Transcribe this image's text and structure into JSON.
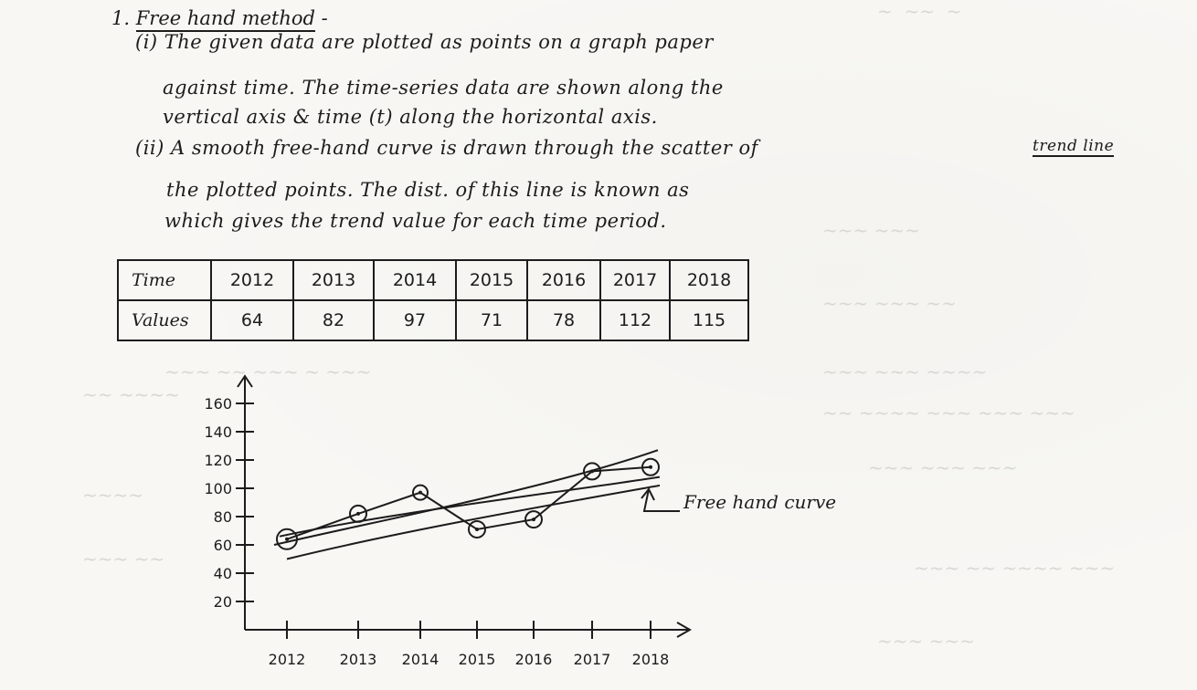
{
  "heading": {
    "number": "1.",
    "title": "Free hand method",
    "dash": " -"
  },
  "paragraph": {
    "l1": "(i) The given data are plotted as points on a graph paper",
    "l2": "against time. The time-series data are shown along the",
    "l3": "vertical axis & time (t) along the horizontal axis.",
    "l4_pre": "(ii) A smooth free-hand curve is drawn through the scatter of",
    "l4_trend": "trend line",
    "l5": "the plotted points. The dist. of this line is known as",
    "l6": "which gives the trend value for each time period."
  },
  "table": {
    "time_label": "Time",
    "values_label": "Values",
    "years": [
      "2012",
      "2013",
      "2014",
      "2015",
      "2016",
      "2017",
      "2018"
    ],
    "values": [
      "64",
      "82",
      "97",
      "71",
      "78",
      "112",
      "115"
    ]
  },
  "chart_data": {
    "type": "line",
    "x": [
      "2012",
      "2013",
      "2014",
      "2015",
      "2016",
      "2017",
      "2018"
    ],
    "ylim": [
      0,
      170
    ],
    "yticks": [
      "160",
      "140",
      "120",
      "100",
      "80",
      "60",
      "40",
      "20"
    ],
    "series": [
      {
        "values": [
          64,
          82,
          97,
          71,
          78,
          112,
          115
        ]
      }
    ],
    "annotation": "Free hand curve"
  }
}
